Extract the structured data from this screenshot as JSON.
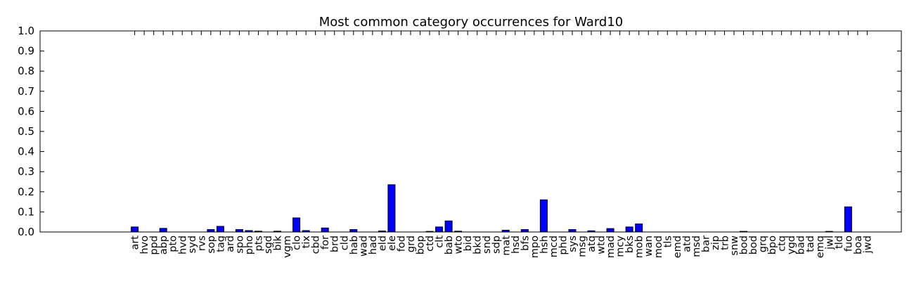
{
  "chart_data": {
    "type": "bar",
    "title": "Most common category occurrences for Ward10",
    "xlabel": "",
    "ylabel": "",
    "ylim": [
      0,
      1.0
    ],
    "yticks": [
      "0.0",
      "0.1",
      "0.2",
      "0.3",
      "0.4",
      "0.5",
      "0.6",
      "0.7",
      "0.8",
      "0.9",
      "1.0"
    ],
    "grid": false,
    "bar_color": "#0000ff",
    "categories": [
      "art",
      "hvo",
      "ppd",
      "abp",
      "pto",
      "hvd",
      "syd",
      "rvs",
      "sop",
      "tag",
      "ard",
      "spo",
      "pho",
      "pts",
      "sgd",
      "bik",
      "vgm",
      "clo",
      "tix",
      "cbd",
      "for",
      "brd",
      "cld",
      "hab",
      "wad",
      "had",
      "eld",
      "ele",
      "fod",
      "grd",
      "bop",
      "ctd",
      "clt",
      "bab",
      "wto",
      "bid",
      "bkd",
      "snd",
      "sdp",
      "mat",
      "hsd",
      "bfs",
      "mpo",
      "hsh",
      "mcd",
      "phd",
      "sys",
      "msg",
      "atq",
      "wtd",
      "mad",
      "mcy",
      "bks",
      "mob",
      "wan",
      "mod",
      "tls",
      "emd",
      "atd",
      "msd",
      "bar",
      "zip",
      "trb",
      "snw",
      "bod",
      "bod",
      "grq",
      "bpo",
      "ctq",
      "ygd",
      "bad",
      "tad",
      "emq",
      "jwl",
      "tld",
      "fuo",
      "boa",
      "jwd"
    ],
    "values": [
      0.025,
      0,
      0,
      0.018,
      0,
      0,
      0,
      0,
      0.012,
      0.028,
      0,
      0.012,
      0.007,
      0.004,
      0,
      0.004,
      0,
      0.07,
      0.007,
      0,
      0.02,
      0,
      0,
      0.012,
      0,
      0,
      0.005,
      0.235,
      0,
      0,
      0,
      0.003,
      0.025,
      0.055,
      0.004,
      0,
      0,
      0,
      0,
      0.009,
      0,
      0.012,
      0,
      0.16,
      0,
      0,
      0.012,
      0,
      0.006,
      0,
      0.017,
      0,
      0.025,
      0.04,
      0,
      0,
      0,
      0,
      0,
      0,
      0,
      0,
      0,
      0,
      0.003,
      0,
      0,
      0,
      0,
      0,
      0,
      0,
      0,
      0.003,
      0,
      0.125,
      0,
      0
    ]
  }
}
